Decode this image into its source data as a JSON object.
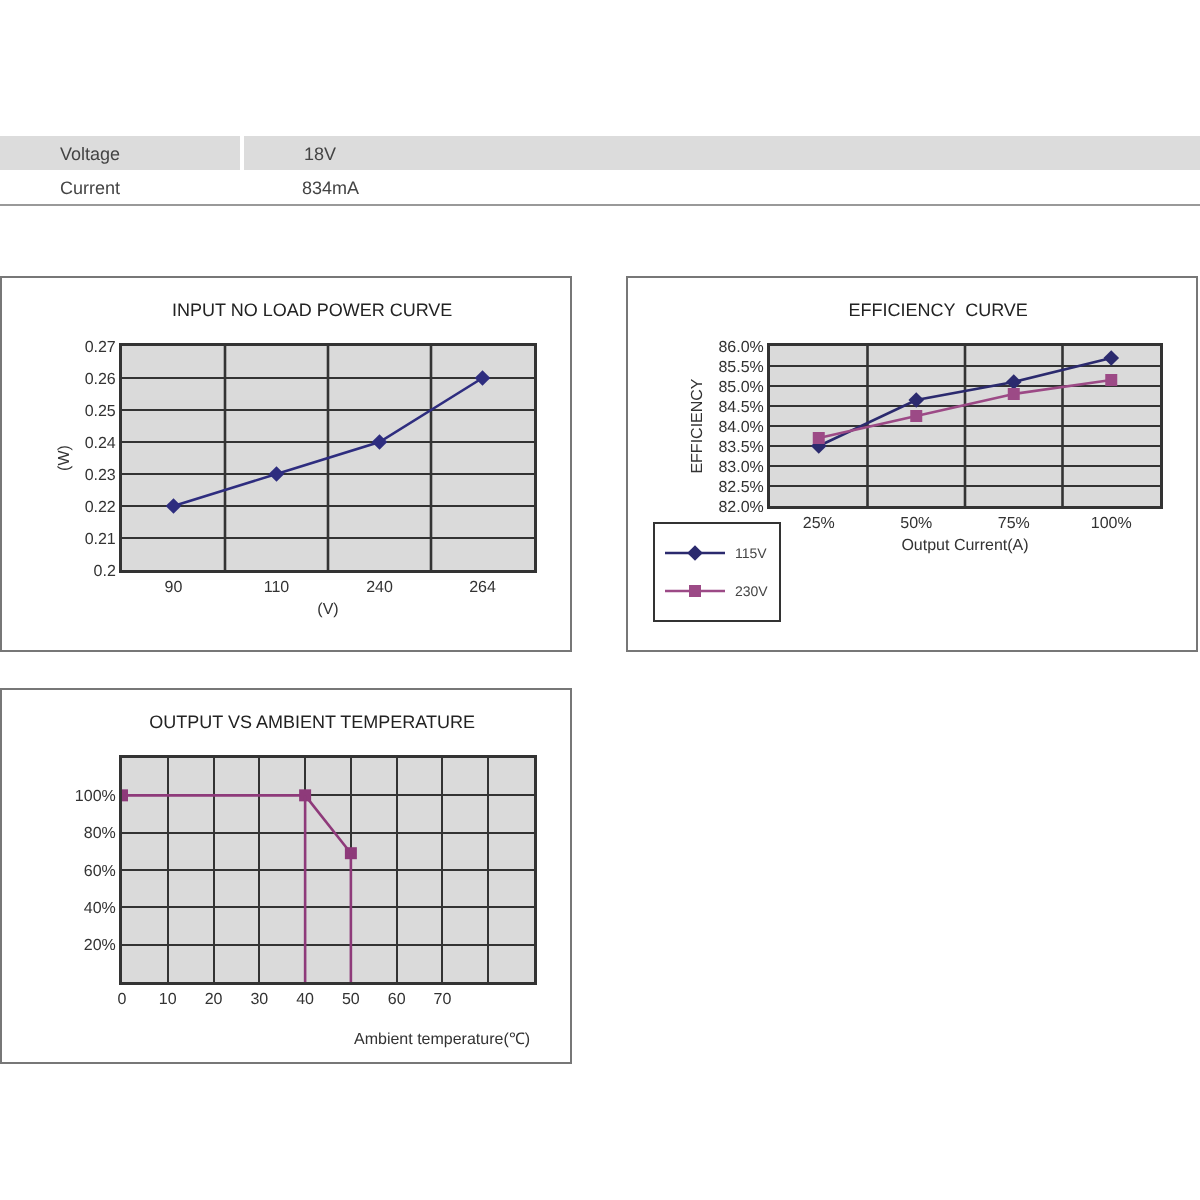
{
  "chart_data": [
    {
      "type": "other",
      "annotations": [
        "Voltage",
        "18V",
        "Current",
        "834mA"
      ]
    },
    {
      "type": "line",
      "title": "INPUT NO LOAD POWER CURVE",
      "xlabel": "(V)",
      "ylabel": "(W)",
      "categories": [
        "90",
        "110",
        "240",
        "264"
      ],
      "series": [
        {
          "color": "#2e2d7f",
          "values": [
            0.22,
            0.23,
            0.24,
            0.26
          ]
        }
      ],
      "ylim": [
        0.2,
        0.27
      ],
      "yticks": [
        0.2,
        0.21,
        0.22,
        0.23,
        0.24,
        0.25,
        0.26,
        0.27
      ],
      "grid": true,
      "legend": false,
      "marker": "diamond",
      "line_style": "solid"
    },
    {
      "type": "line",
      "title": "EFFICIENCY  CURVE",
      "xlabel": "Output Current(A)",
      "ylabel": "EFFICIENCY",
      "categories": [
        "25%",
        "50%",
        "75%",
        "100%"
      ],
      "series": [
        {
          "name": "115V",
          "color": "#2b2a6e",
          "marker": "diamond",
          "values": [
            83.5,
            84.65,
            85.1,
            85.7
          ]
        },
        {
          "name": "230V",
          "color": "#9c4a86",
          "marker": "square",
          "values": [
            83.7,
            84.25,
            84.8,
            85.15
          ]
        }
      ],
      "ylim": [
        82,
        86
      ],
      "yticks": [
        {
          "value": 82,
          "label": "82.0%"
        },
        {
          "value": 82.5,
          "label": "82.5%"
        },
        {
          "value": 83,
          "label": "83.0%"
        },
        {
          "value": 83.5,
          "label": "83.5%"
        },
        {
          "value": 84,
          "label": "84.0%"
        },
        {
          "value": 84.5,
          "label": "84.5%"
        },
        {
          "value": 85,
          "label": "85.0%"
        },
        {
          "value": 85.5,
          "label": "85.5%"
        },
        {
          "value": 86,
          "label": "86.0%"
        }
      ],
      "grid": true,
      "legend": "bottom left",
      "line_style": "solid"
    },
    {
      "type": "line",
      "title": "OUTPUT VS AMBIENT TEMPERATURE",
      "xlabel": "Ambient temperature(℃)",
      "series": [
        {
          "color": "#8e3a7a",
          "marker": "square",
          "x": [
            0,
            40,
            50
          ],
          "values": [
            100,
            100,
            69
          ]
        },
        {
          "color": "#8e3a7a",
          "x": [
            40,
            40
          ],
          "values": [
            0,
            100
          ]
        },
        {
          "color": "#8e3a7a",
          "x": [
            50,
            50
          ],
          "values": [
            0,
            69
          ]
        }
      ],
      "xlim": [
        0,
        90
      ],
      "xticks": [
        0,
        10,
        20,
        30,
        40,
        50,
        60,
        70,
        {
          "value": 80,
          "label": null
        }
      ],
      "ylim": [
        0,
        120
      ],
      "yticks": [
        {
          "value": 20,
          "label": "20%"
        },
        {
          "value": 40,
          "label": "40%"
        },
        {
          "value": 60,
          "label": "60%"
        },
        {
          "value": 80,
          "label": "80%"
        },
        {
          "value": 100,
          "label": "100%"
        }
      ],
      "grid": true,
      "legend": false,
      "line_style": "solid"
    }
  ]
}
